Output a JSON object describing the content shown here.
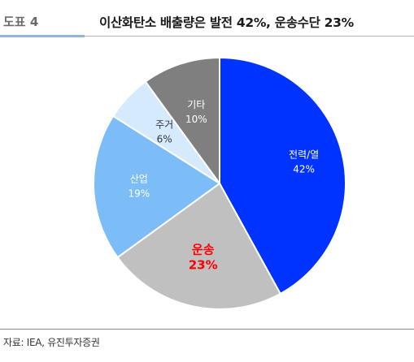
{
  "figure": {
    "label": "도표 4",
    "title": "이산화탄소 배출량은 발전 42%, 운송수단 23%"
  },
  "source": "자료: IEA, 유진투자증권",
  "chart_data": {
    "type": "pie",
    "title": "",
    "unit": "%",
    "slices": [
      {
        "label": "전력/열",
        "value": 42,
        "display": "42%",
        "color": "#0033ff",
        "text_color": "#ffffff",
        "emphasis": false
      },
      {
        "label": "운송",
        "value": 23,
        "display": "23%",
        "color": "#c0c0c0",
        "text_color": "#ff0000",
        "emphasis": true
      },
      {
        "label": "산업",
        "value": 19,
        "display": "19%",
        "color": "#7cbcf7",
        "text_color": "#ffffff",
        "emphasis": false
      },
      {
        "label": "주거",
        "value": 6,
        "display": "6%",
        "color": "#d6eafd",
        "text_color": "#333333",
        "emphasis": false
      },
      {
        "label": "기타",
        "value": 10,
        "display": "10%",
        "color": "#7f7f7f",
        "text_color": "#ffffff",
        "emphasis": false
      }
    ],
    "start": "12 o'clock",
    "direction": "clockwise",
    "legend": "none"
  }
}
